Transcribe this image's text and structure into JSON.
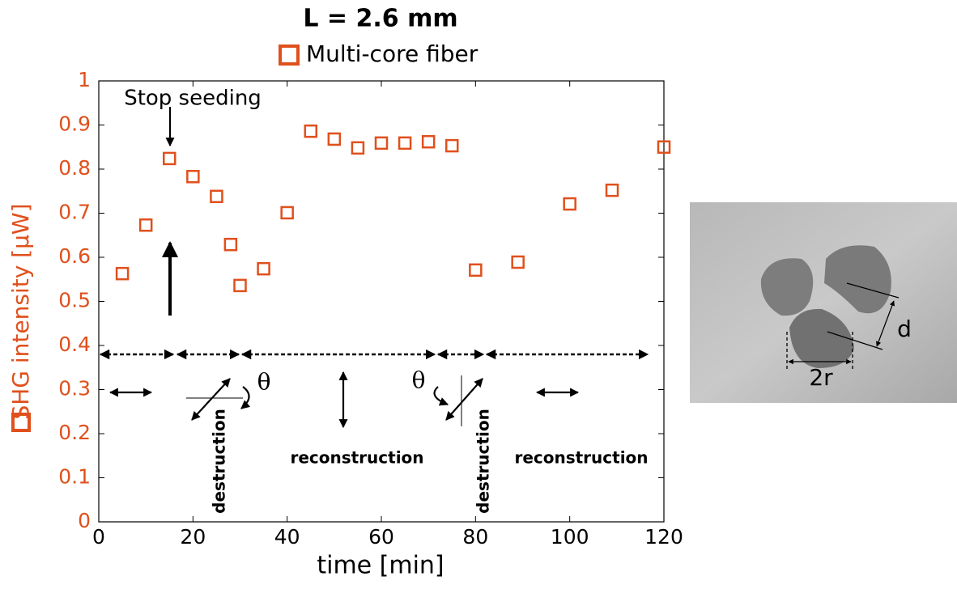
{
  "chart_data": {
    "type": "scatter",
    "title": "L = 2.6 mm",
    "x_label": "time [min]",
    "y_label": "SHG intensity  [μW]",
    "series": [
      {
        "name": "Multi-core fiber",
        "color": "#e0501c",
        "x": [
          5,
          10,
          15,
          20,
          25,
          28,
          30,
          35,
          40,
          45,
          50,
          55,
          60,
          65,
          70,
          75,
          80,
          89,
          100,
          109,
          120
        ],
        "values": [
          0.563,
          0.673,
          0.824,
          0.783,
          0.738,
          0.629,
          0.536,
          0.574,
          0.701,
          0.886,
          0.868,
          0.848,
          0.859,
          0.859,
          0.862,
          0.853,
          0.571,
          0.589,
          0.721,
          0.752,
          0.85
        ]
      }
    ],
    "xlim": [
      0,
      120
    ],
    "ylim": [
      0,
      1
    ],
    "xticks": [
      0,
      20,
      40,
      60,
      80,
      100,
      120
    ],
    "yticks": [
      0,
      0.1,
      0.2,
      0.3,
      0.4,
      0.5,
      0.6,
      0.7,
      0.8,
      0.9,
      1
    ],
    "annotations": [
      "Stop seeding",
      "destruction",
      "reconstruction",
      "destruction",
      "reconstruction",
      "θ",
      "θ",
      "d",
      "2r"
    ]
  }
}
